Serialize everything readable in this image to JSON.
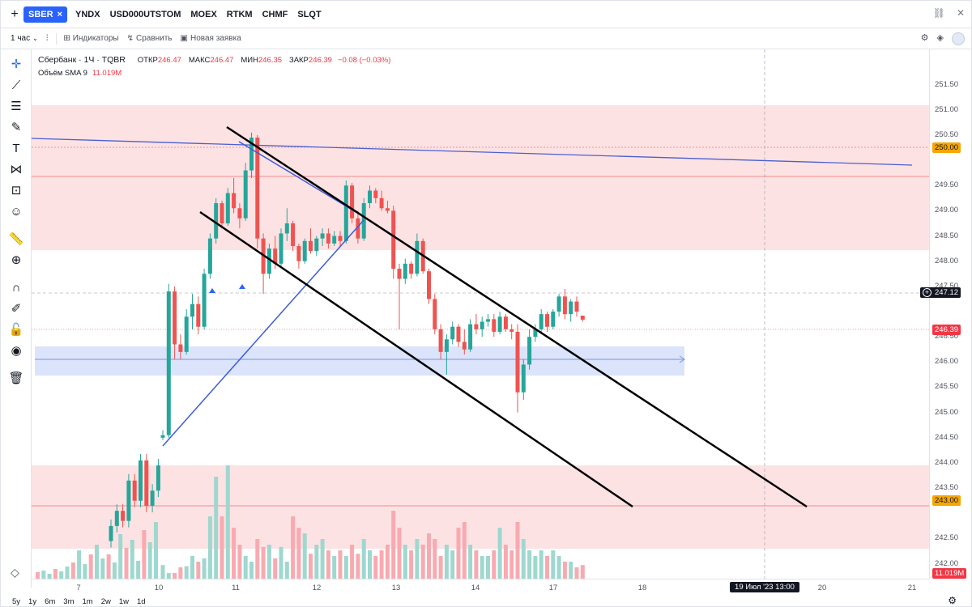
{
  "tabs": {
    "items": [
      {
        "label": "SBER",
        "active": true
      },
      {
        "label": "YNDX",
        "active": false
      },
      {
        "label": "USD000UTSTOM",
        "active": false
      },
      {
        "label": "MOEX",
        "active": false
      },
      {
        "label": "RTKM",
        "active": false
      },
      {
        "label": "CHMF",
        "active": false
      },
      {
        "label": "SLQT",
        "active": false
      }
    ]
  },
  "toolbar": {
    "interval": "1 час",
    "indicators": "Индикаторы",
    "compare": "Сравнить",
    "new_order": "Новая заявка"
  },
  "legend": {
    "name": "Сбербанк · 1Ч · TQBR",
    "open_label": "ОТКР",
    "open": "246.47",
    "high_label": "МАКС",
    "high": "246.47",
    "low_label": "МИН",
    "low": "246.35",
    "close_label": "ЗАКР",
    "close": "246.39",
    "change": "−0.08 (−0.03%)",
    "volume_label": "Объём SMA 9",
    "volume_value": "11.019M"
  },
  "price_axis": {
    "ticks": [
      "251.50",
      "251.00",
      "250.50",
      "249.50",
      "249.00",
      "248.50",
      "248.00",
      "247.50",
      "246.50",
      "246.00",
      "245.50",
      "245.00",
      "244.50",
      "244.00",
      "243.50",
      "242.50",
      "242.00"
    ],
    "badges": {
      "level_high": "250.00",
      "crosshair": "247.12",
      "last": "246.39",
      "level_low": "243.00",
      "volume": "11.019M"
    }
  },
  "time_axis": {
    "ticks": [
      "7",
      "10",
      "11",
      "12",
      "13",
      "14",
      "17",
      "18",
      "20",
      "21"
    ],
    "crosshair": "19 Июл '23   13:00"
  },
  "range_bar": [
    "5y",
    "1y",
    "6m",
    "3m",
    "1m",
    "2w",
    "1w",
    "1d"
  ],
  "colors": {
    "up": "#26a69a",
    "down": "#ef5350",
    "accent": "#2962ff",
    "zone_red": "#fde2e4",
    "zone_blue": "#dbe4fb"
  },
  "chart_data": {
    "type": "candlestick",
    "symbol": "SBER",
    "ylim": [
      241.8,
      251.75
    ],
    "candles": [
      {
        "o": 244.05,
        "h": 244.2,
        "l": 244.0,
        "c": 244.1
      },
      {
        "o": 244.1,
        "h": 247.1,
        "l": 244.05,
        "c": 246.95
      },
      {
        "o": 246.95,
        "h": 247.05,
        "l": 245.6,
        "c": 245.9
      },
      {
        "o": 245.9,
        "h": 246.1,
        "l": 245.6,
        "c": 245.75
      },
      {
        "o": 245.75,
        "h": 246.6,
        "l": 245.7,
        "c": 246.45
      },
      {
        "o": 246.45,
        "h": 246.9,
        "l": 246.2,
        "c": 246.7
      },
      {
        "o": 246.7,
        "h": 246.85,
        "l": 246.1,
        "c": 246.25
      },
      {
        "o": 246.25,
        "h": 247.4,
        "l": 246.2,
        "c": 247.3
      },
      {
        "o": 247.3,
        "h": 248.1,
        "l": 247.2,
        "c": 248.0
      },
      {
        "o": 248.0,
        "h": 248.8,
        "l": 247.9,
        "c": 248.7
      },
      {
        "o": 248.7,
        "h": 248.75,
        "l": 248.2,
        "c": 248.3
      },
      {
        "o": 248.3,
        "h": 249.0,
        "l": 248.25,
        "c": 248.9
      },
      {
        "o": 248.9,
        "h": 249.2,
        "l": 248.5,
        "c": 248.6
      },
      {
        "o": 248.6,
        "h": 248.7,
        "l": 248.2,
        "c": 248.4
      },
      {
        "o": 248.4,
        "h": 249.5,
        "l": 248.35,
        "c": 249.35
      },
      {
        "o": 249.35,
        "h": 250.1,
        "l": 249.2,
        "c": 250.0
      },
      {
        "o": 250.0,
        "h": 250.05,
        "l": 247.8,
        "c": 248.0
      },
      {
        "o": 248.0,
        "h": 248.1,
        "l": 246.9,
        "c": 247.3
      },
      {
        "o": 247.3,
        "h": 247.9,
        "l": 247.2,
        "c": 247.8
      },
      {
        "o": 247.8,
        "h": 248.05,
        "l": 247.4,
        "c": 247.5
      },
      {
        "o": 247.5,
        "h": 248.2,
        "l": 247.45,
        "c": 248.1
      },
      {
        "o": 248.1,
        "h": 248.6,
        "l": 247.95,
        "c": 248.3
      },
      {
        "o": 248.3,
        "h": 248.35,
        "l": 247.75,
        "c": 247.85
      },
      {
        "o": 247.85,
        "h": 247.9,
        "l": 247.4,
        "c": 247.55
      },
      {
        "o": 247.55,
        "h": 248.0,
        "l": 247.5,
        "c": 247.95
      },
      {
        "o": 247.95,
        "h": 248.2,
        "l": 247.7,
        "c": 247.75
      },
      {
        "o": 247.75,
        "h": 248.05,
        "l": 247.65,
        "c": 248.0
      },
      {
        "o": 248.0,
        "h": 248.2,
        "l": 247.85,
        "c": 248.1
      },
      {
        "o": 248.1,
        "h": 248.2,
        "l": 247.8,
        "c": 247.9
      },
      {
        "o": 247.9,
        "h": 248.15,
        "l": 247.85,
        "c": 248.05
      },
      {
        "o": 248.05,
        "h": 248.15,
        "l": 247.85,
        "c": 247.95
      },
      {
        "o": 247.95,
        "h": 249.15,
        "l": 247.9,
        "c": 249.05
      },
      {
        "o": 249.05,
        "h": 249.1,
        "l": 248.3,
        "c": 248.4
      },
      {
        "o": 248.4,
        "h": 248.55,
        "l": 247.9,
        "c": 248.0
      },
      {
        "o": 248.0,
        "h": 248.8,
        "l": 247.95,
        "c": 248.7
      },
      {
        "o": 248.7,
        "h": 249.05,
        "l": 248.6,
        "c": 248.95
      },
      {
        "o": 248.95,
        "h": 249.0,
        "l": 248.7,
        "c": 248.8
      },
      {
        "o": 248.8,
        "h": 248.95,
        "l": 248.55,
        "c": 248.6
      },
      {
        "o": 248.6,
        "h": 248.75,
        "l": 248.5,
        "c": 248.55
      },
      {
        "o": 248.55,
        "h": 248.65,
        "l": 247.2,
        "c": 247.4
      },
      {
        "o": 247.4,
        "h": 247.5,
        "l": 246.2,
        "c": 247.2
      },
      {
        "o": 247.2,
        "h": 247.6,
        "l": 247.1,
        "c": 247.5
      },
      {
        "o": 247.5,
        "h": 247.55,
        "l": 247.2,
        "c": 247.3
      },
      {
        "o": 247.3,
        "h": 248.1,
        "l": 247.25,
        "c": 247.95
      },
      {
        "o": 247.95,
        "h": 248.0,
        "l": 247.3,
        "c": 247.35
      },
      {
        "o": 247.35,
        "h": 247.4,
        "l": 246.7,
        "c": 246.8
      },
      {
        "o": 246.8,
        "h": 246.9,
        "l": 246.1,
        "c": 246.2
      },
      {
        "o": 246.2,
        "h": 246.3,
        "l": 245.6,
        "c": 245.75
      },
      {
        "o": 245.75,
        "h": 246.1,
        "l": 245.3,
        "c": 246.0
      },
      {
        "o": 246.0,
        "h": 246.35,
        "l": 245.9,
        "c": 246.25
      },
      {
        "o": 246.25,
        "h": 246.3,
        "l": 245.85,
        "c": 245.95
      },
      {
        "o": 245.95,
        "h": 246.2,
        "l": 245.7,
        "c": 245.8
      },
      {
        "o": 245.8,
        "h": 246.4,
        "l": 245.75,
        "c": 246.3
      },
      {
        "o": 246.3,
        "h": 246.5,
        "l": 246.1,
        "c": 246.2
      },
      {
        "o": 246.2,
        "h": 246.45,
        "l": 246.05,
        "c": 246.35
      },
      {
        "o": 246.35,
        "h": 246.5,
        "l": 246.25,
        "c": 246.4
      },
      {
        "o": 246.4,
        "h": 246.5,
        "l": 246.05,
        "c": 246.15
      },
      {
        "o": 246.15,
        "h": 246.55,
        "l": 246.1,
        "c": 246.45
      },
      {
        "o": 246.45,
        "h": 246.5,
        "l": 246.15,
        "c": 246.2
      },
      {
        "o": 246.2,
        "h": 246.3,
        "l": 246.0,
        "c": 246.15
      },
      {
        "o": 246.15,
        "h": 246.3,
        "l": 244.55,
        "c": 244.95
      },
      {
        "o": 244.95,
        "h": 245.6,
        "l": 244.8,
        "c": 245.5
      },
      {
        "o": 245.5,
        "h": 246.2,
        "l": 245.4,
        "c": 246.05
      },
      {
        "o": 246.05,
        "h": 246.3,
        "l": 245.95,
        "c": 246.2
      },
      {
        "o": 246.2,
        "h": 246.6,
        "l": 246.1,
        "c": 246.5
      },
      {
        "o": 246.5,
        "h": 246.55,
        "l": 246.15,
        "c": 246.25
      },
      {
        "o": 246.25,
        "h": 246.6,
        "l": 246.2,
        "c": 246.55
      },
      {
        "o": 246.55,
        "h": 246.9,
        "l": 246.45,
        "c": 246.85
      },
      {
        "o": 246.85,
        "h": 247.0,
        "l": 246.4,
        "c": 246.5
      },
      {
        "o": 246.5,
        "h": 246.8,
        "l": 246.35,
        "c": 246.75
      },
      {
        "o": 246.75,
        "h": 246.85,
        "l": 246.45,
        "c": 246.55
      },
      {
        "o": 246.47,
        "h": 246.47,
        "l": 246.35,
        "c": 246.39
      }
    ],
    "volumes": [
      0.12,
      0.05,
      0.05,
      0.1,
      0.11,
      0.2,
      0.15,
      0.18,
      0.55,
      0.9,
      0.55,
      1.0,
      0.45,
      0.3,
      0.2,
      0.15,
      0.35,
      0.28,
      0.3,
      0.18,
      0.28,
      0.15,
      0.55,
      0.45,
      0.4,
      0.22,
      0.3,
      0.35,
      0.25,
      0.2,
      0.25,
      0.2,
      0.3,
      0.22,
      0.35,
      0.25,
      0.2,
      0.25,
      0.3,
      0.6,
      0.45,
      0.3,
      0.25,
      0.35,
      0.3,
      0.4,
      0.35,
      0.2,
      0.3,
      0.25,
      0.45,
      0.5,
      0.3,
      0.25,
      0.2,
      0.2,
      0.25,
      0.45,
      0.3,
      0.25,
      0.5,
      0.35,
      0.25,
      0.2,
      0.25,
      0.2,
      0.25,
      0.2,
      0.15,
      0.15,
      0.1,
      0.12
    ]
  }
}
